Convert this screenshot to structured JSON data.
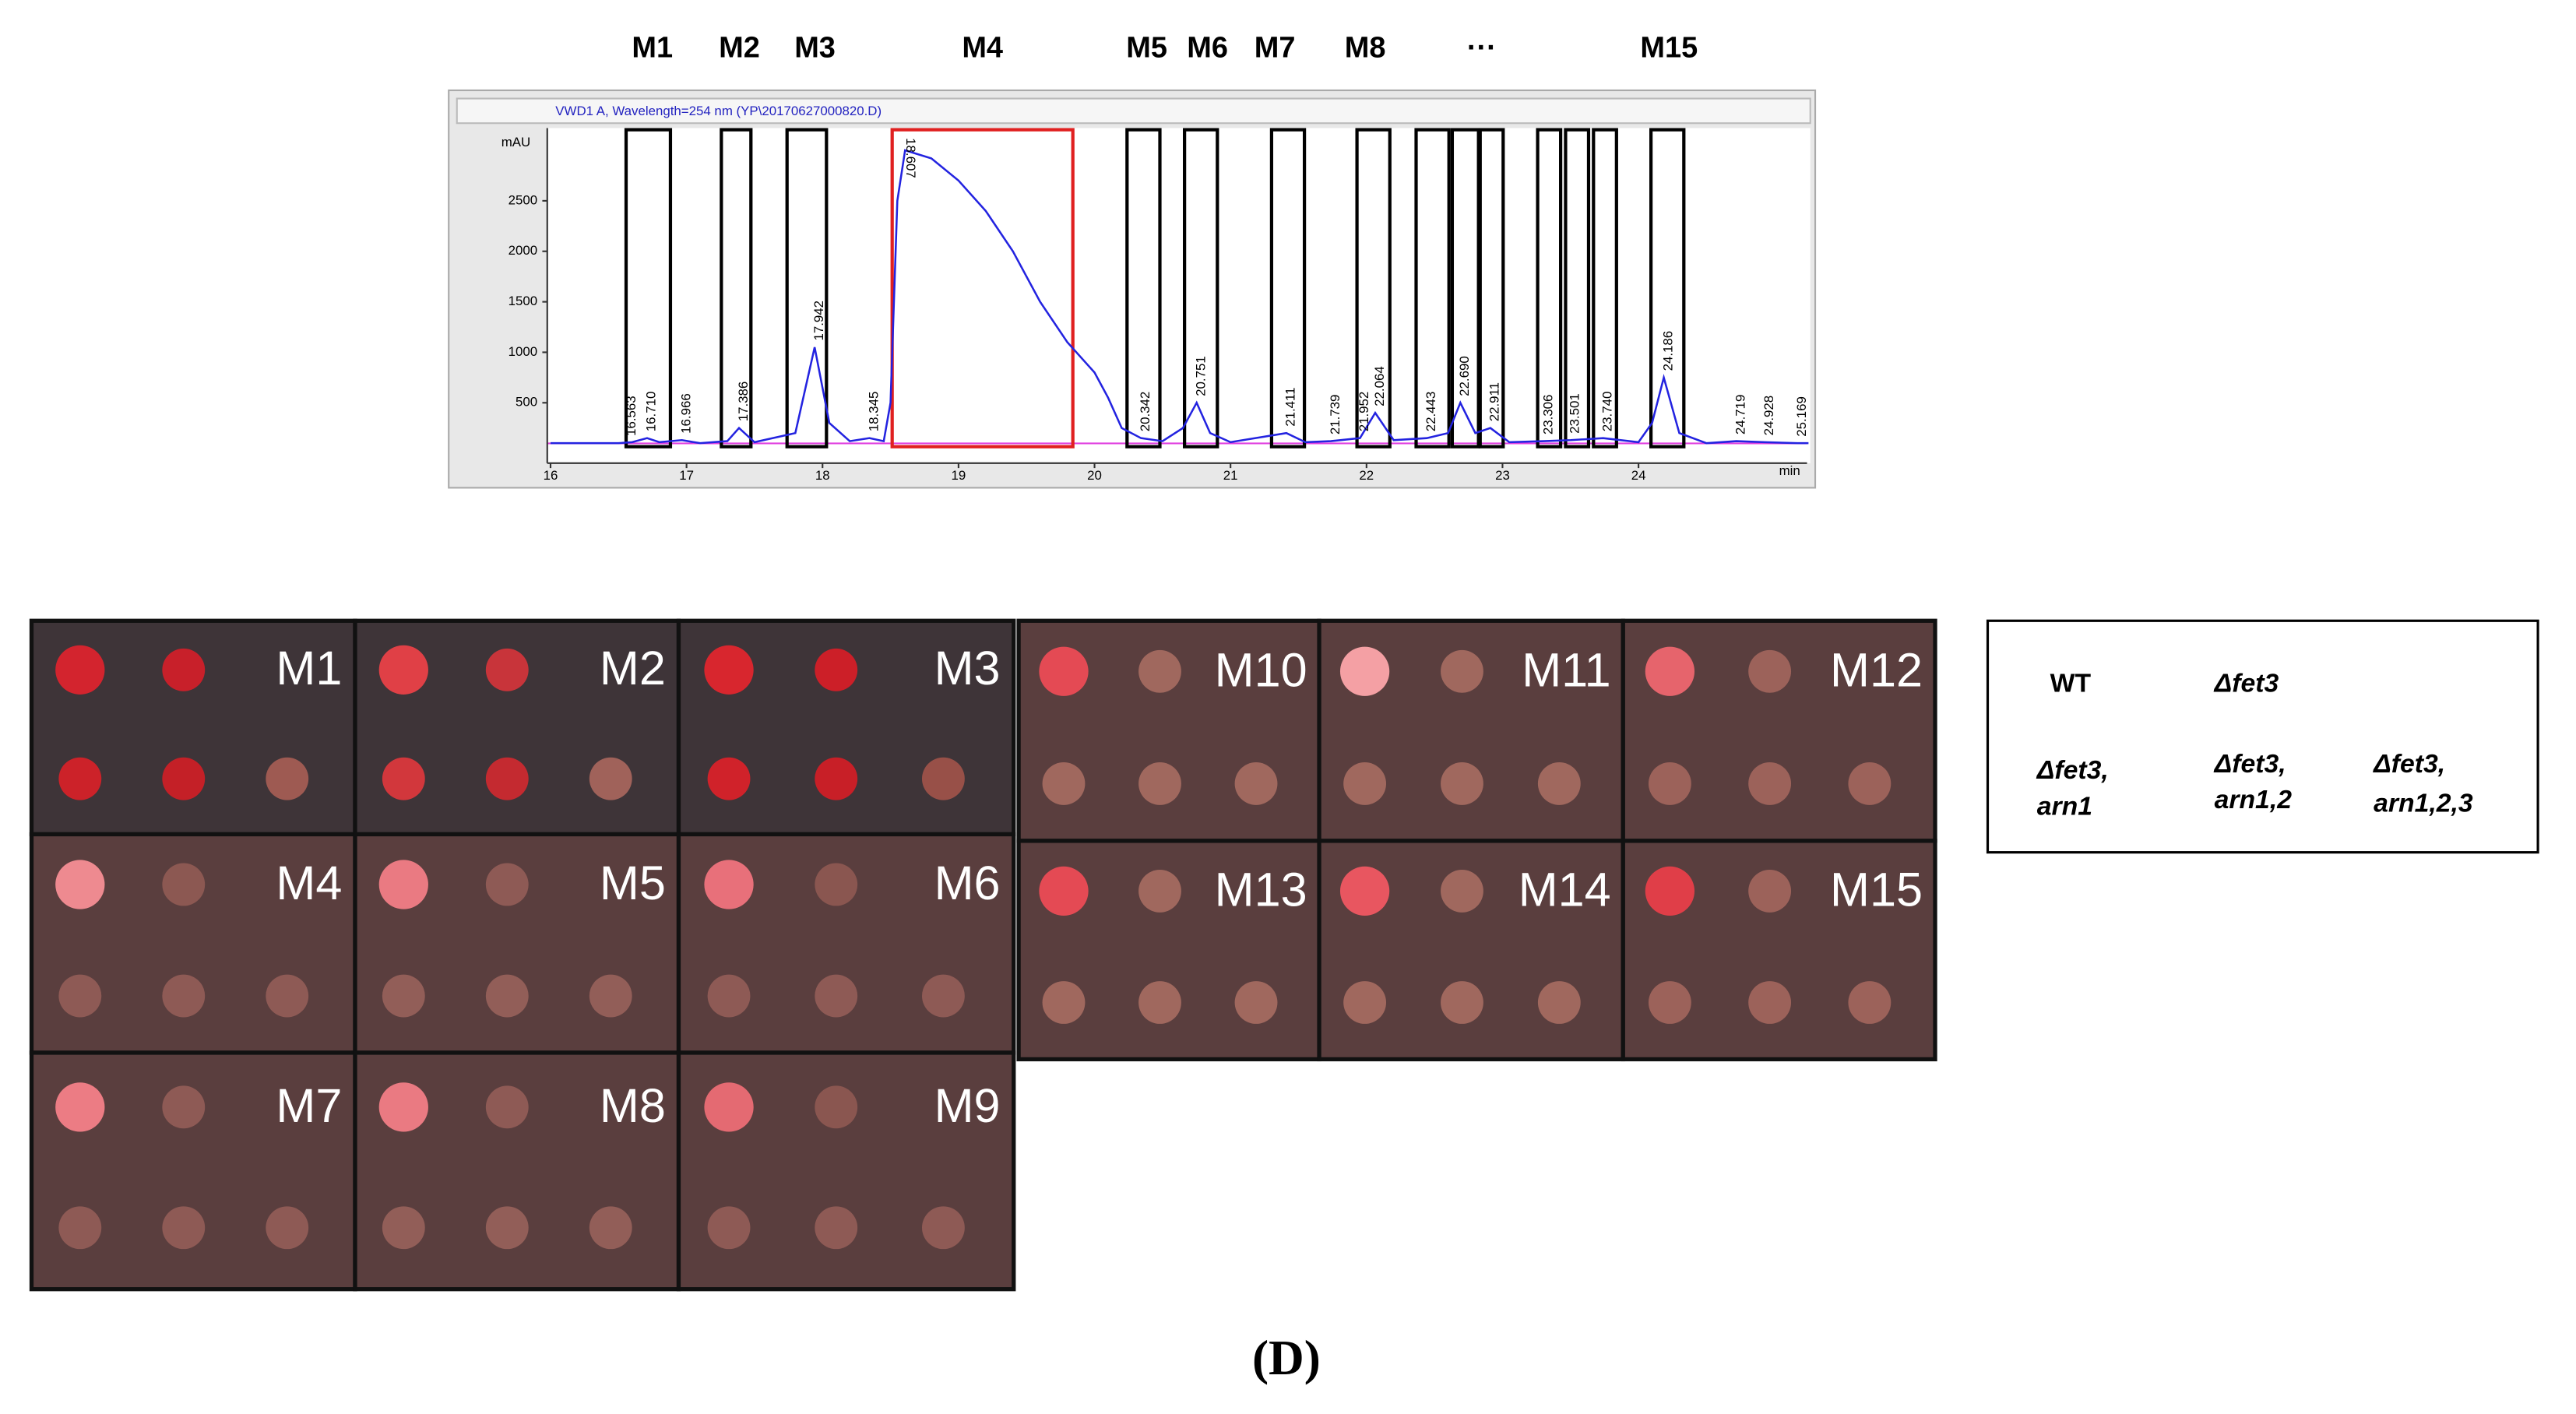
{
  "fraction_labels": [
    "M1",
    "M2",
    "M3",
    "M4",
    "M5",
    "M6",
    "M7",
    "M8",
    "···",
    "M15"
  ],
  "chart_data": {
    "type": "line",
    "header": "VWD1 A, Wavelength=254 nm (YP\\20170627000820.D)",
    "y_unit": "mAU",
    "x_unit": "min",
    "color": "#2323e0",
    "x": [
      16.0,
      16.5,
      16.6,
      16.71,
      16.8,
      16.966,
      17.1,
      17.3,
      17.386,
      17.5,
      17.8,
      17.942,
      18.05,
      18.2,
      18.345,
      18.45,
      18.5,
      18.55,
      18.607,
      18.8,
      19.0,
      19.2,
      19.4,
      19.6,
      19.8,
      20.0,
      20.1,
      20.2,
      20.342,
      20.5,
      20.65,
      20.751,
      20.85,
      21.0,
      21.411,
      21.55,
      21.739,
      21.952,
      22.064,
      22.2,
      22.443,
      22.6,
      22.69,
      22.8,
      22.911,
      23.05,
      23.306,
      23.501,
      23.74,
      24.0,
      24.1,
      24.186,
      24.3,
      24.5,
      24.719,
      24.928,
      25.169,
      25.25
    ],
    "values": [
      100,
      100,
      110,
      150,
      110,
      130,
      100,
      120,
      250,
      110,
      200,
      1050,
      300,
      120,
      150,
      120,
      500,
      2500,
      3000,
      2920,
      2700,
      2400,
      2000,
      1500,
      1100,
      800,
      550,
      250,
      150,
      120,
      250,
      500,
      200,
      110,
      200,
      110,
      120,
      150,
      400,
      130,
      150,
      200,
      500,
      200,
      250,
      110,
      120,
      130,
      150,
      110,
      300,
      750,
      200,
      100,
      120,
      110,
      100,
      100
    ],
    "peaks": [
      16.563,
      {
        "value": 16.71,
        "label": "16.710"
      },
      16.966,
      17.386,
      17.942,
      18.345,
      18.607,
      20.342,
      20.751,
      21.411,
      21.739,
      21.952,
      22.064,
      22.443,
      {
        "value": 22.69,
        "label": "22.690"
      },
      22.911,
      23.306,
      23.501,
      {
        "value": 23.74,
        "label": "23.740"
      },
      24.186,
      24.719,
      24.928,
      25.169
    ],
    "xlim": [
      16,
      25.25
    ],
    "ylim": [
      0,
      3150
    ],
    "xticks": [
      16,
      17,
      18,
      19,
      20,
      21,
      22,
      23,
      24
    ],
    "yticks": [
      500,
      1000,
      1500,
      2000,
      2500
    ]
  },
  "panels": [
    {
      "label": "M1",
      "dots": [
        "#d3242e",
        "#c8202a",
        "#cc2229",
        "#c42027",
        "#9e5a52"
      ]
    },
    {
      "label": "M2",
      "dots": [
        "#e04046",
        "#c8343a",
        "#d2373c",
        "#c42a30",
        "#a0625a"
      ]
    },
    {
      "label": "M3",
      "dots": [
        "#d8262e",
        "#cc1f28",
        "#d0222a",
        "#c81f27",
        "#985048"
      ]
    },
    {
      "label": "M4",
      "dots": [
        "#ee8a90",
        "#8c5852",
        "#8e5a55",
        "#8e5a55",
        "#8e5a55"
      ]
    },
    {
      "label": "M5",
      "dots": [
        "#ea7a82",
        "#8e5a55",
        "#925e58",
        "#925e58",
        "#925e58"
      ]
    },
    {
      "label": "M6",
      "dots": [
        "#e8707a",
        "#8a5650",
        "#8e5a55",
        "#8e5a55",
        "#8e5a55"
      ]
    },
    {
      "label": "M7",
      "dots": [
        "#ec7c84",
        "#8e5a55",
        "#8e5a55",
        "#8e5a55",
        "#8e5a55"
      ]
    },
    {
      "label": "M8",
      "dots": [
        "#ea7a82",
        "#8e5a55",
        "#925e58",
        "#925e58",
        "#925e58"
      ]
    },
    {
      "label": "M9",
      "dots": [
        "#e46a72",
        "#8a5650",
        "#8e5a55",
        "#8e5a55",
        "#8e5a55"
      ]
    },
    {
      "label": "M10",
      "dots": [
        "#e44a54",
        "#a0685e",
        "#a0685e",
        "#a0685e",
        "#a0685e"
      ]
    },
    {
      "label": "M11",
      "dots": [
        "#f4a0a4",
        "#a0685e",
        "#a0685e",
        "#a0685e",
        "#a0685e"
      ]
    },
    {
      "label": "M12",
      "dots": [
        "#e6646c",
        "#9c625a",
        "#9c625a",
        "#9c625a",
        "#9c625a"
      ]
    },
    {
      "label": "M13",
      "dots": [
        "#e44a54",
        "#a0685e",
        "#a0685e",
        "#a0685e",
        "#a0685e"
      ]
    },
    {
      "label": "M14",
      "dots": [
        "#e85660",
        "#a0685e",
        "#a0685e",
        "#a0685e",
        "#a0685e"
      ]
    },
    {
      "label": "M15",
      "dots": [
        "#e03e48",
        "#9c625a",
        "#9c625a",
        "#9c625a",
        "#9c625a"
      ]
    }
  ],
  "legend": {
    "wt": "WT",
    "fet3": "Δfet3",
    "arn1": [
      "Δfet3,",
      "arn1"
    ],
    "arn12": [
      "Δfet3,",
      "arn1,2"
    ],
    "arn123": [
      "Δfet3,",
      "arn1,2,3"
    ]
  },
  "figure_label": "(D)"
}
